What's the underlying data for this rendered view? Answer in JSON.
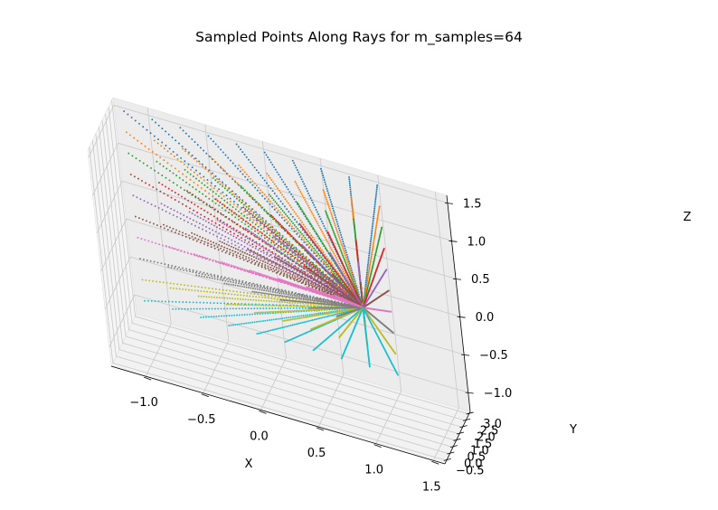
{
  "chart_data": {
    "type": "scatter",
    "projection": "3d",
    "title": "Sampled Points Along Rays for m_samples=64",
    "xlabel": "X",
    "ylabel": "Y",
    "zlabel": "Z",
    "x_ticks": [
      "−1.0",
      "−0.5",
      "0.0",
      "0.5",
      "1.0",
      "1.5"
    ],
    "y_ticks": [
      "−0.5",
      "0.0",
      "0.5",
      "1.0",
      "1.5",
      "2.0",
      "2.5",
      "3.0"
    ],
    "z_ticks": [
      "−1.0",
      "−0.5",
      "0.0",
      "0.5",
      "1.0",
      "1.5"
    ],
    "xlim": [
      -1.3,
      1.6
    ],
    "ylim": [
      -0.75,
      3.2
    ],
    "zlim": [
      -1.25,
      1.6
    ],
    "grid": true,
    "legend": "none",
    "ray_grid": {
      "rows": 10,
      "cols": 10
    },
    "samples_per_ray": 64,
    "ray_origin": [
      1.0,
      -0.5,
      0.5
    ],
    "ray_far_end_x_range": [
      -1.2,
      1.0
    ],
    "ray_far_end_z_range": [
      -1.0,
      1.5
    ],
    "ray_far_end_y": 3.0,
    "colors": [
      "#1f77b4",
      "#ff7f0e",
      "#2ca02c",
      "#d62728",
      "#9467bd",
      "#8c564b",
      "#e377c2",
      "#7f7f7f",
      "#bcbd22",
      "#17becf"
    ]
  }
}
